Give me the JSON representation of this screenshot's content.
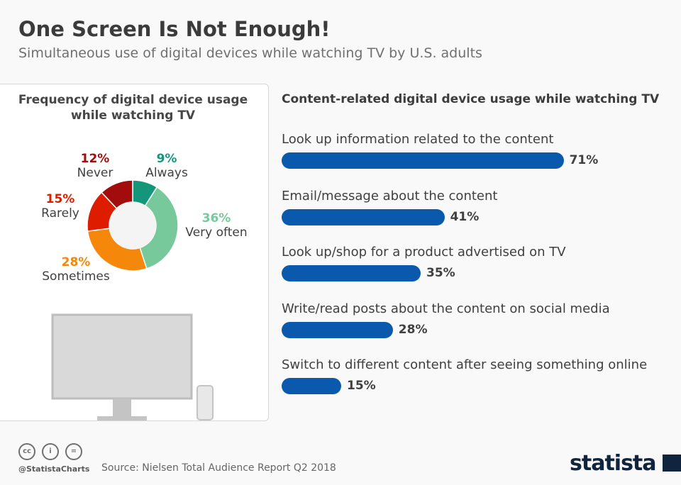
{
  "header": {
    "title": "One Screen Is Not Enough!",
    "subtitle": "Simultaneous use of digital devices while watching TV by U.S. adults"
  },
  "chart_data": [
    {
      "type": "pie",
      "donut": true,
      "title": "Frequency of digital device usage while watching TV",
      "categories": [
        "Always",
        "Very often",
        "Sometimes",
        "Rarely",
        "Never"
      ],
      "values": [
        9,
        36,
        28,
        15,
        12
      ],
      "labels": [
        "9%",
        "36%",
        "28%",
        "15%",
        "12%"
      ],
      "colors": [
        "#13967a",
        "#77c99b",
        "#f5870a",
        "#dd1c00",
        "#a30c0c"
      ]
    },
    {
      "type": "bar",
      "orientation": "horizontal",
      "title": "Content-related digital device usage while watching TV",
      "categories": [
        "Look up information related to the content",
        "Email/message about the content",
        "Look up/shop for a product advertised on TV",
        "Write/read posts about the content on social media",
        "Switch to different content after seeing something online"
      ],
      "values": [
        71,
        41,
        35,
        28,
        15
      ],
      "labels": [
        "71%",
        "41%",
        "35%",
        "28%",
        "15%"
      ],
      "color": "#0a59ad",
      "xlim": [
        0,
        100
      ]
    }
  ],
  "footer": {
    "handle": "@StatistaCharts",
    "source": "Source: Nielsen Total Audience Report Q2 2018",
    "logo": "statista",
    "license_icons": [
      "cc",
      "by",
      "nd"
    ]
  }
}
